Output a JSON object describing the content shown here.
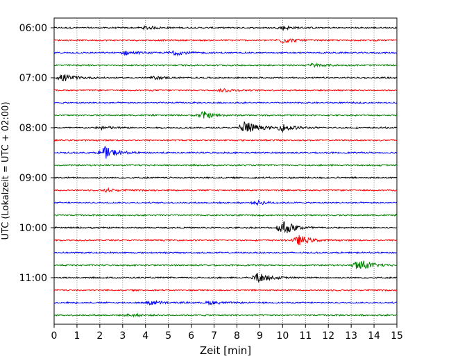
{
  "chart_data": {
    "type": "line",
    "subtype": "helicorder",
    "xlabel": "Zeit  [min]",
    "ylabel": "UTC (Lokalzeit = UTC + 02:00)",
    "xlim": [
      0,
      15
    ],
    "x_ticks": [
      "0",
      "1",
      "2",
      "3",
      "4",
      "5",
      "6",
      "7",
      "8",
      "9",
      "10",
      "11",
      "12",
      "13",
      "14",
      "15"
    ],
    "y_tick_labels": [
      "06:00",
      "07:00",
      "08:00",
      "09:00",
      "10:00",
      "11:00"
    ],
    "rows_per_hour": 4,
    "row_count": 24,
    "grid": "vertical dotted at each minute",
    "trace_colors": [
      "#000000",
      "#ff0000",
      "#0000ff",
      "#008000"
    ],
    "events": [
      {
        "row": 0,
        "minute": 4.0,
        "amplitude": 0.25
      },
      {
        "row": 0,
        "minute": 10.0,
        "amplitude": 0.3
      },
      {
        "row": 1,
        "minute": 10.0,
        "amplitude": 0.45
      },
      {
        "row": 2,
        "minute": 3.1,
        "amplitude": 0.3
      },
      {
        "row": 2,
        "minute": 5.2,
        "amplitude": 0.4
      },
      {
        "row": 3,
        "minute": 11.3,
        "amplitude": 0.3
      },
      {
        "row": 4,
        "minute": 0.4,
        "amplitude": 0.6
      },
      {
        "row": 4,
        "minute": 4.4,
        "amplitude": 0.2
      },
      {
        "row": 5,
        "minute": 7.4,
        "amplitude": 0.3
      },
      {
        "row": 7,
        "minute": 6.5,
        "amplitude": 0.6
      },
      {
        "row": 8,
        "minute": 8.3,
        "amplitude": 1.3
      },
      {
        "row": 8,
        "minute": 10.0,
        "amplitude": 0.55
      },
      {
        "row": 8,
        "minute": 2.1,
        "amplitude": 0.25
      },
      {
        "row": 10,
        "minute": 2.2,
        "amplitude": 1.0
      },
      {
        "row": 13,
        "minute": 2.3,
        "amplitude": 0.25
      },
      {
        "row": 14,
        "minute": 8.9,
        "amplitude": 0.3
      },
      {
        "row": 16,
        "minute": 10.0,
        "amplitude": 1.3
      },
      {
        "row": 17,
        "minute": 10.7,
        "amplitude": 0.8
      },
      {
        "row": 19,
        "minute": 13.3,
        "amplitude": 1.1
      },
      {
        "row": 20,
        "minute": 8.9,
        "amplitude": 0.8
      },
      {
        "row": 22,
        "minute": 4.2,
        "amplitude": 0.35
      },
      {
        "row": 22,
        "minute": 6.8,
        "amplitude": 0.25
      },
      {
        "row": 23,
        "minute": 3.3,
        "amplitude": 0.2
      }
    ]
  }
}
